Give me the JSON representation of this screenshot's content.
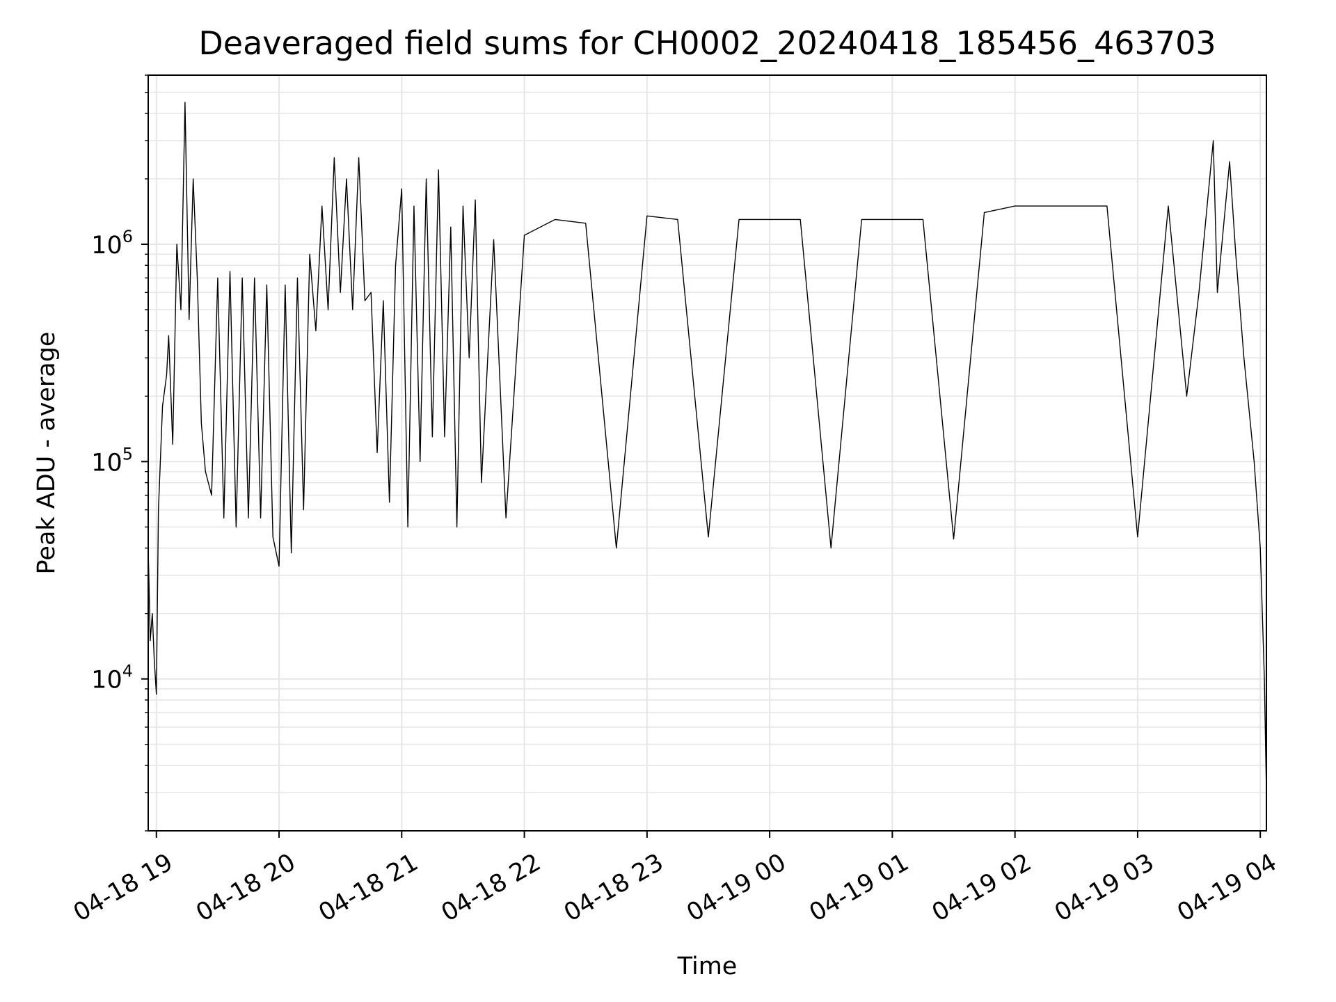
{
  "chart_data": {
    "type": "line",
    "title": "Deaveraged field sums for CH0002_20240418_185456_463703",
    "xlabel": "Time",
    "ylabel": "Peak ADU - average",
    "yscale": "log",
    "grid": true,
    "line_color": "#000000",
    "grid_color": "#e6e6e6",
    "xlim": [
      "2024-04-18 18:56",
      "2024-04-19 04:03"
    ],
    "ylim": [
      2000,
      6000000
    ],
    "x_ticks": [
      "04-18 19",
      "04-18 20",
      "04-18 21",
      "04-18 22",
      "04-18 23",
      "04-19 00",
      "04-19 01",
      "04-19 02",
      "04-19 03",
      "04-19 04"
    ],
    "y_ticks": [
      {
        "base": "10",
        "exp": "4",
        "value": 10000
      },
      {
        "base": "10",
        "exp": "5",
        "value": 100000
      },
      {
        "base": "10",
        "exp": "6",
        "value": 1000000
      }
    ],
    "series": [
      {
        "points": [
          [
            "2024-04-18 18:56",
            40000
          ],
          [
            "2024-04-18 18:57",
            15000
          ],
          [
            "2024-04-18 18:58",
            20000
          ],
          [
            "2024-04-18 18:59",
            12000
          ],
          [
            "2024-04-18 19:00",
            8500
          ],
          [
            "2024-04-18 19:01",
            60000
          ],
          [
            "2024-04-18 19:03",
            180000
          ],
          [
            "2024-04-18 19:05",
            250000
          ],
          [
            "2024-04-18 19:06",
            380000
          ],
          [
            "2024-04-18 19:08",
            120000
          ],
          [
            "2024-04-18 19:10",
            1000000
          ],
          [
            "2024-04-18 19:12",
            500000
          ],
          [
            "2024-04-18 19:14",
            4500000
          ],
          [
            "2024-04-18 19:16",
            450000
          ],
          [
            "2024-04-18 19:18",
            2000000
          ],
          [
            "2024-04-18 19:20",
            700000
          ],
          [
            "2024-04-18 19:22",
            150000
          ],
          [
            "2024-04-18 19:24",
            90000
          ],
          [
            "2024-04-18 19:27",
            70000
          ],
          [
            "2024-04-18 19:30",
            700000
          ],
          [
            "2024-04-18 19:33",
            55000
          ],
          [
            "2024-04-18 19:36",
            750000
          ],
          [
            "2024-04-18 19:39",
            50000
          ],
          [
            "2024-04-18 19:42",
            700000
          ],
          [
            "2024-04-18 19:45",
            55000
          ],
          [
            "2024-04-18 19:48",
            700000
          ],
          [
            "2024-04-18 19:51",
            55000
          ],
          [
            "2024-04-18 19:54",
            650000
          ],
          [
            "2024-04-18 19:57",
            45000
          ],
          [
            "2024-04-18 20:00",
            33000
          ],
          [
            "2024-04-18 20:03",
            650000
          ],
          [
            "2024-04-18 20:06",
            38000
          ],
          [
            "2024-04-18 20:09",
            700000
          ],
          [
            "2024-04-18 20:12",
            60000
          ],
          [
            "2024-04-18 20:15",
            900000
          ],
          [
            "2024-04-18 20:18",
            400000
          ],
          [
            "2024-04-18 20:21",
            1500000
          ],
          [
            "2024-04-18 20:24",
            500000
          ],
          [
            "2024-04-18 20:27",
            2500000
          ],
          [
            "2024-04-18 20:30",
            600000
          ],
          [
            "2024-04-18 20:33",
            2000000
          ],
          [
            "2024-04-18 20:36",
            500000
          ],
          [
            "2024-04-18 20:39",
            2500000
          ],
          [
            "2024-04-18 20:42",
            550000
          ],
          [
            "2024-04-18 20:45",
            600000
          ],
          [
            "2024-04-18 20:48",
            110000
          ],
          [
            "2024-04-18 20:51",
            550000
          ],
          [
            "2024-04-18 20:54",
            65000
          ],
          [
            "2024-04-18 20:57",
            800000
          ],
          [
            "2024-04-18 21:00",
            1800000
          ],
          [
            "2024-04-18 21:03",
            50000
          ],
          [
            "2024-04-18 21:06",
            1500000
          ],
          [
            "2024-04-18 21:09",
            100000
          ],
          [
            "2024-04-18 21:12",
            2000000
          ],
          [
            "2024-04-18 21:15",
            130000
          ],
          [
            "2024-04-18 21:18",
            2200000
          ],
          [
            "2024-04-18 21:21",
            130000
          ],
          [
            "2024-04-18 21:24",
            1200000
          ],
          [
            "2024-04-18 21:27",
            50000
          ],
          [
            "2024-04-18 21:30",
            1500000
          ],
          [
            "2024-04-18 21:33",
            300000
          ],
          [
            "2024-04-18 21:36",
            1600000
          ],
          [
            "2024-04-18 21:39",
            80000
          ],
          [
            "2024-04-18 21:45",
            1050000
          ],
          [
            "2024-04-18 21:51",
            55000
          ],
          [
            "2024-04-18 22:00",
            1100000
          ],
          [
            "2024-04-18 22:15",
            1300000
          ],
          [
            "2024-04-18 22:30",
            1250000
          ],
          [
            "2024-04-18 22:45",
            40000
          ],
          [
            "2024-04-18 23:00",
            1350000
          ],
          [
            "2024-04-18 23:15",
            1300000
          ],
          [
            "2024-04-18 23:30",
            45000
          ],
          [
            "2024-04-18 23:45",
            1300000
          ],
          [
            "2024-04-19 00:00",
            1300000
          ],
          [
            "2024-04-19 00:15",
            1300000
          ],
          [
            "2024-04-19 00:30",
            40000
          ],
          [
            "2024-04-19 00:45",
            1300000
          ],
          [
            "2024-04-19 01:00",
            1300000
          ],
          [
            "2024-04-19 01:15",
            1300000
          ],
          [
            "2024-04-19 01:30",
            44000
          ],
          [
            "2024-04-19 01:45",
            1400000
          ],
          [
            "2024-04-19 02:00",
            1500000
          ],
          [
            "2024-04-19 02:15",
            1500000
          ],
          [
            "2024-04-19 02:30",
            1500000
          ],
          [
            "2024-04-19 02:45",
            1500000
          ],
          [
            "2024-04-19 03:00",
            45000
          ],
          [
            "2024-04-19 03:15",
            1500000
          ],
          [
            "2024-04-19 03:24",
            200000
          ],
          [
            "2024-04-19 03:30",
            600000
          ],
          [
            "2024-04-19 03:37",
            3000000
          ],
          [
            "2024-04-19 03:39",
            600000
          ],
          [
            "2024-04-19 03:45",
            2400000
          ],
          [
            "2024-04-19 03:48",
            900000
          ],
          [
            "2024-04-19 03:52",
            300000
          ],
          [
            "2024-04-19 03:57",
            100000
          ],
          [
            "2024-04-19 04:00",
            40000
          ],
          [
            "2024-04-19 04:02",
            10000
          ],
          [
            "2024-04-19 04:03",
            3000
          ]
        ]
      }
    ]
  }
}
